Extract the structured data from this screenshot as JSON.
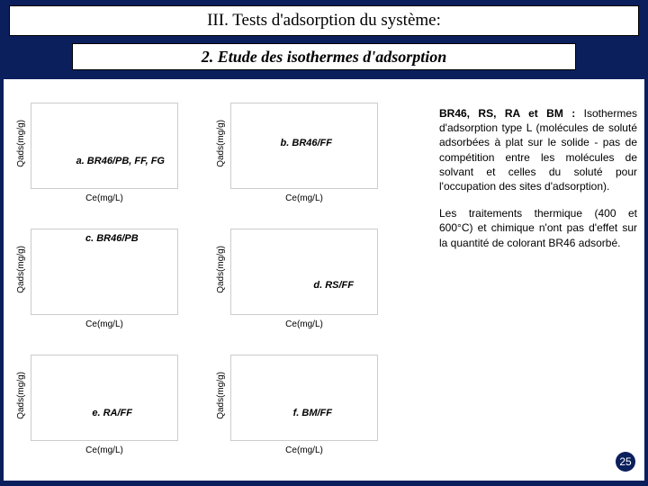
{
  "title": "III. Tests d'adsorption du système:",
  "subtitle": "2. Etude des isothermes d'adsorption",
  "axes": {
    "y": "Qads(mg/g)",
    "x": "Ce(mg/L)"
  },
  "labels": {
    "a": "a. BR46/PB, FF, FG",
    "b": "b. BR46/FF",
    "c": "c. BR46/PB",
    "d": "d. RS/FF",
    "e": "e. RA/FF",
    "f": "f. BM/FF"
  },
  "commentary": {
    "p1_bold": "BR46, RS, RA et BM :",
    "p1_rest": " Isothermes d'adsorption type L (molécules de soluté adsorbées à plat sur le solide - pas de compétition entre les molécules de solvant et celles du soluté pour l'occupation des sites d'adsorption).",
    "p2": "Les traitements thermique (400 et 600°C) et chimique n'ont pas d'effet sur la quantité de colorant BR46 adsorbé."
  },
  "page_number": "25",
  "colors": {
    "page_bg": "#0b1f5d",
    "white": "#ffffff",
    "border": "#cccccc",
    "text": "#000000"
  },
  "chart_style": {
    "type": "line",
    "background_color": "#ffffff",
    "axis_label_fontsize": 10,
    "label_fontsize": 11,
    "label_font_style": "italic bold"
  }
}
